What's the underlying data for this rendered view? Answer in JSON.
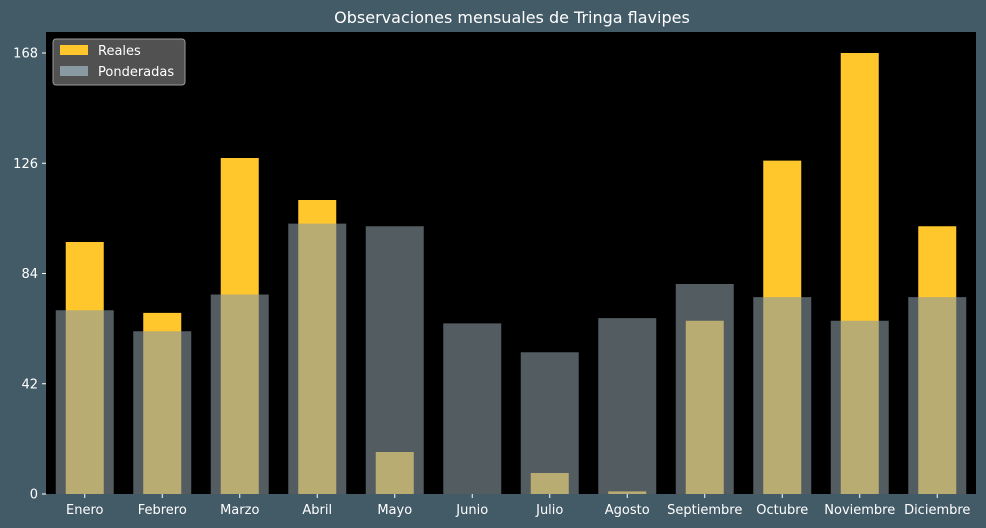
{
  "chart_data": {
    "type": "bar",
    "title": "Observaciones mensuales de Tringa flavipes",
    "xlabel": "",
    "ylabel": "",
    "categories": [
      "Enero",
      "Febrero",
      "Marzo",
      "Abril",
      "Mayo",
      "Junio",
      "Julio",
      "Agosto",
      "Septiembre",
      "Octubre",
      "Noviembre",
      "Diciembre"
    ],
    "series": [
      {
        "name": "Reales",
        "values": [
          96,
          69,
          128,
          112,
          16,
          0,
          8,
          1,
          66,
          127,
          168,
          102
        ]
      },
      {
        "name": "Ponderadas",
        "values": [
          70,
          62,
          76,
          103,
          102,
          65,
          54,
          67,
          80,
          75,
          66,
          75
        ]
      }
    ],
    "yticks": [
      0,
      42,
      84,
      126,
      168
    ],
    "ylim": [
      0,
      176
    ],
    "grid": false,
    "legend_position": "top-left",
    "colors": {
      "reales": "#ffc72c",
      "ponderadas": "#8a9aa2",
      "ponderadas_opacity": 0.6,
      "plot_background": "#000000",
      "figure_background": "#435a67",
      "text": "#ffffff"
    }
  }
}
